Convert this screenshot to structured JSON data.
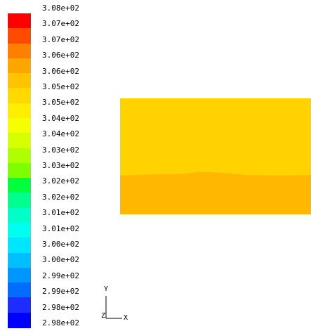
{
  "legend": {
    "labels": [
      "3.08e+02",
      "3.07e+02",
      "3.07e+02",
      "3.06e+02",
      "3.06e+02",
      "3.05e+02",
      "3.05e+02",
      "3.04e+02",
      "3.04e+02",
      "3.03e+02",
      "3.03e+02",
      "3.02e+02",
      "3.02e+02",
      "3.01e+02",
      "3.01e+02",
      "3.00e+02",
      "3.00e+02",
      "2.99e+02",
      "2.99e+02",
      "2.98e+02",
      "2.98e+02"
    ],
    "colors": [
      "#ff0000",
      "#ff4a00",
      "#ff7f00",
      "#ffa500",
      "#ffc300",
      "#ffd900",
      "#ffee00",
      "#f5ff00",
      "#d6ff00",
      "#b0ff00",
      "#7dff00",
      "#00ff3c",
      "#00ff8f",
      "#00ffc8",
      "#00fff0",
      "#00e6ff",
      "#00bfff",
      "#0096ff",
      "#006dff",
      "#1e2cff",
      "#0000ff"
    ]
  },
  "contour": {
    "upper_color": "#ffd200",
    "lower_color": "#ffb700"
  },
  "axes": {
    "y_label": "Y",
    "z_label": "Z",
    "x_label": "X"
  }
}
